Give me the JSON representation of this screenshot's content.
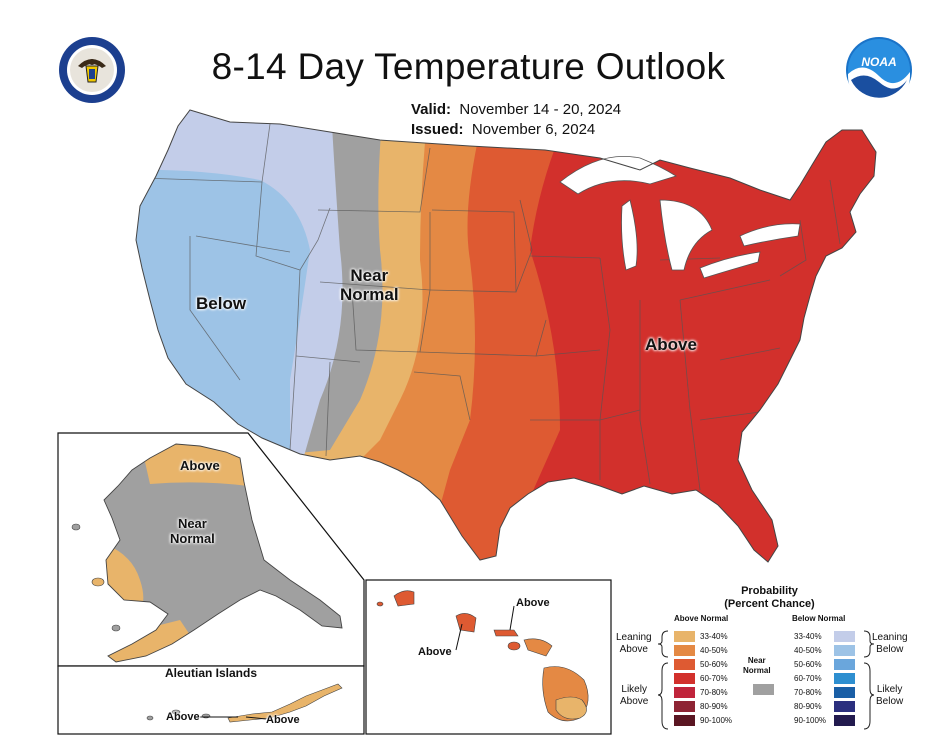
{
  "title": "8-14 Day Temperature Outlook",
  "valid_label": "Valid:",
  "valid_value": "November 14 - 20, 2024",
  "issued_label": "Issued:",
  "issued_value": "November 6, 2024",
  "logos": {
    "left": "commerce-seal-icon",
    "right": "noaa-logo-icon"
  },
  "regions": {
    "conus_below": "Below",
    "conus_near_1": "Near",
    "conus_near_2": "Normal",
    "conus_above": "Above",
    "alaska_above": "Above",
    "alaska_near_1": "Near",
    "alaska_near_2": "Normal",
    "hawaii_above_1": "Above",
    "hawaii_above_2": "Above",
    "aleutian_title": "Aleutian Islands",
    "aleutian_above_1": "Above",
    "aleutian_above_2": "Above"
  },
  "legend": {
    "title_1": "Probability",
    "title_2": "(Percent Chance)",
    "above_header": "Above Normal",
    "below_header": "Below Normal",
    "near_normal_1": "Near",
    "near_normal_2": "Normal",
    "leaning_1": "Leaning",
    "leaning_above": "Above",
    "leaning_below": "Below",
    "likely_1": "Likely",
    "likely_above": "Above",
    "likely_below": "Below",
    "above_bins": [
      {
        "label": "33-40%",
        "color": "#e8b46a"
      },
      {
        "label": "40-50%",
        "color": "#e48944"
      },
      {
        "label": "50-60%",
        "color": "#de5a32"
      },
      {
        "label": "60-70%",
        "color": "#d2302c"
      },
      {
        "label": "70-80%",
        "color": "#c0243b"
      },
      {
        "label": "80-90%",
        "color": "#8e2434"
      },
      {
        "label": "90-100%",
        "color": "#5a1622"
      }
    ],
    "below_bins": [
      {
        "label": "33-40%",
        "color": "#c3cde9"
      },
      {
        "label": "40-50%",
        "color": "#9dc3e6"
      },
      {
        "label": "50-60%",
        "color": "#6aa6dc"
      },
      {
        "label": "60-70%",
        "color": "#2e8fd0"
      },
      {
        "label": "70-80%",
        "color": "#1a5fa6"
      },
      {
        "label": "80-90%",
        "color": "#2b2f7e"
      },
      {
        "label": "90-100%",
        "color": "#221a4e"
      }
    ],
    "near_color": "#a0a0a0"
  }
}
